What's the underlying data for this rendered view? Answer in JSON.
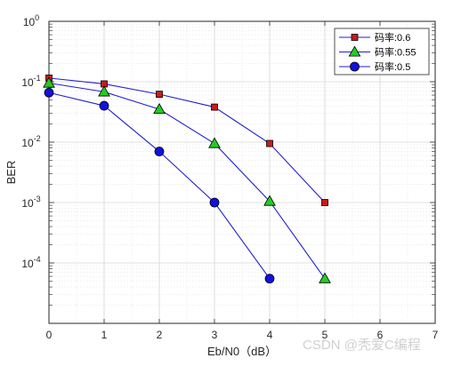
{
  "chart_data": {
    "type": "line",
    "xlabel": "Eb/N0（dB）",
    "ylabel": "BER",
    "x_ticks": [
      "0",
      "1",
      "2",
      "3",
      "4",
      "5",
      "6",
      "7"
    ],
    "y_ticks": [
      {
        "base": "10",
        "exp": "0",
        "value": 1
      },
      {
        "base": "10",
        "exp": "-1",
        "value": 0.1
      },
      {
        "base": "10",
        "exp": "-2",
        "value": 0.01
      },
      {
        "base": "10",
        "exp": "-3",
        "value": 0.001
      },
      {
        "base": "10",
        "exp": "-4",
        "value": 0.0001
      }
    ],
    "xlim": [
      0,
      7
    ],
    "ylim": [
      1e-05,
      1
    ],
    "yscale": "log",
    "grid": true,
    "minor_grid": true,
    "legend_position": "top-right",
    "series": [
      {
        "name": "码率:0.6",
        "color": "#1f1fd0",
        "marker": "square",
        "marker_color": "#cc1a1a",
        "x": [
          0,
          1,
          2,
          3,
          4,
          5
        ],
        "y": [
          0.115,
          0.092,
          0.062,
          0.038,
          0.0095,
          0.001
        ]
      },
      {
        "name": "码率:0.55",
        "color": "#1f1fd0",
        "marker": "triangle",
        "marker_color": "#22cc22",
        "x": [
          0,
          1,
          2,
          3,
          4,
          5
        ],
        "y": [
          0.095,
          0.068,
          0.035,
          0.0095,
          0.00105,
          5.5e-05
        ]
      },
      {
        "name": "码率:0.5",
        "color": "#1f1fd0",
        "marker": "circle",
        "marker_color": "#1010e0",
        "x": [
          0,
          1,
          2,
          3,
          4
        ],
        "y": [
          0.066,
          0.04,
          0.007,
          0.001,
          5.5e-05
        ]
      }
    ]
  },
  "watermark": "CSDN @秃爱C编程"
}
